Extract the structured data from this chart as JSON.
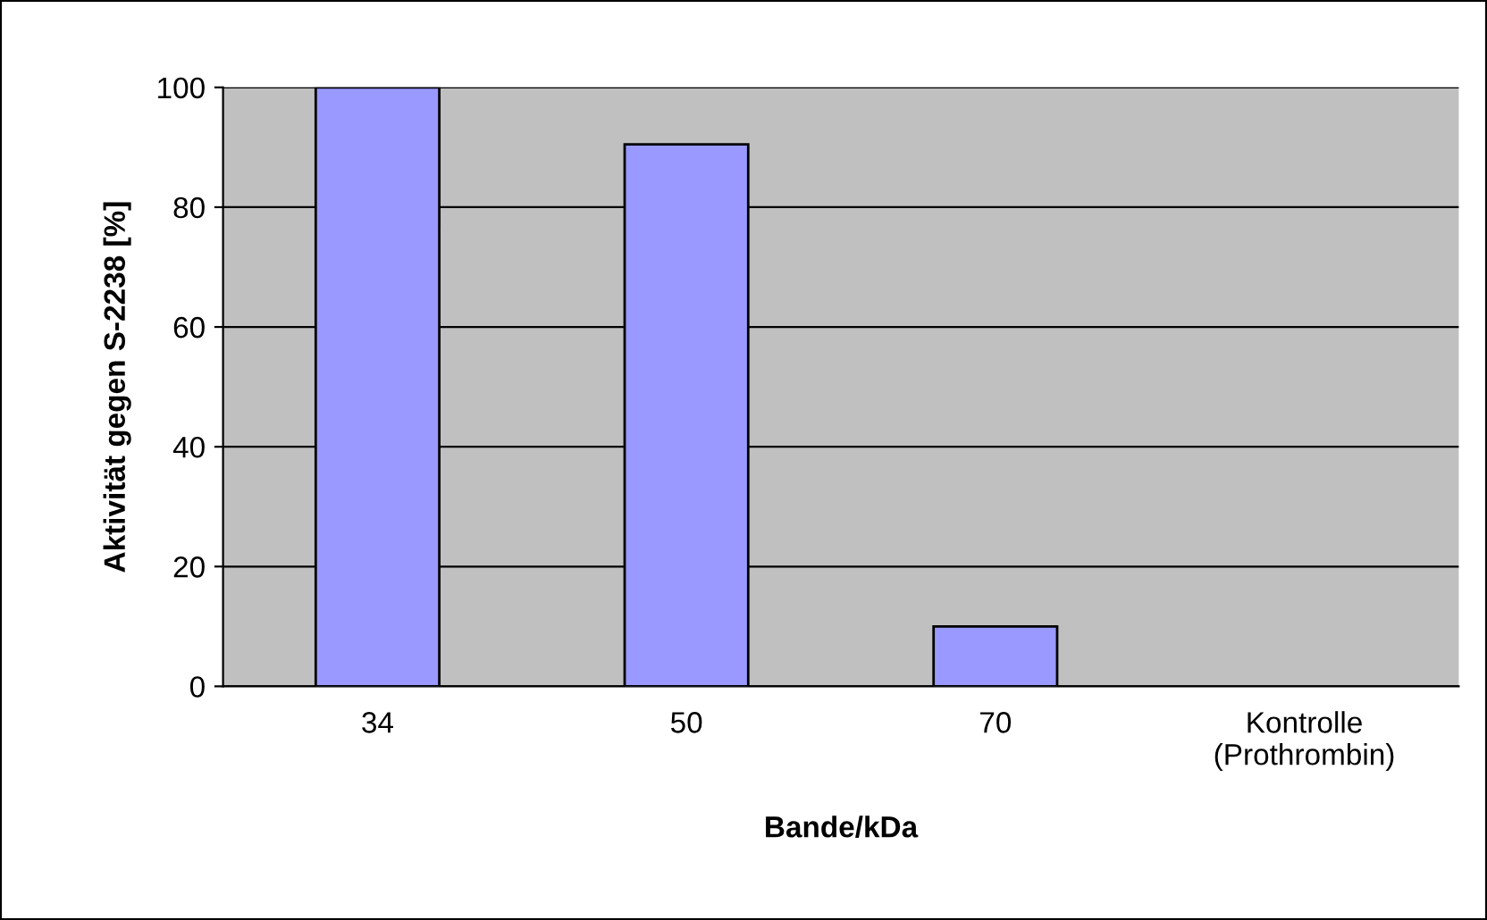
{
  "chart_data": {
    "type": "bar",
    "xlabel": "Bande/kDa",
    "ylabel": "Aktivität gegen S-2238 [%]",
    "categories": [
      "34",
      "50",
      "70",
      "Kontrolle\n(Prothrombin)"
    ],
    "values": [
      100,
      90.5,
      10,
      0
    ],
    "color": "#9999ff",
    "ylim": [
      0,
      100
    ],
    "yticks": [
      0,
      20,
      40,
      60,
      80,
      100
    ],
    "grid": "y",
    "legend": false
  }
}
